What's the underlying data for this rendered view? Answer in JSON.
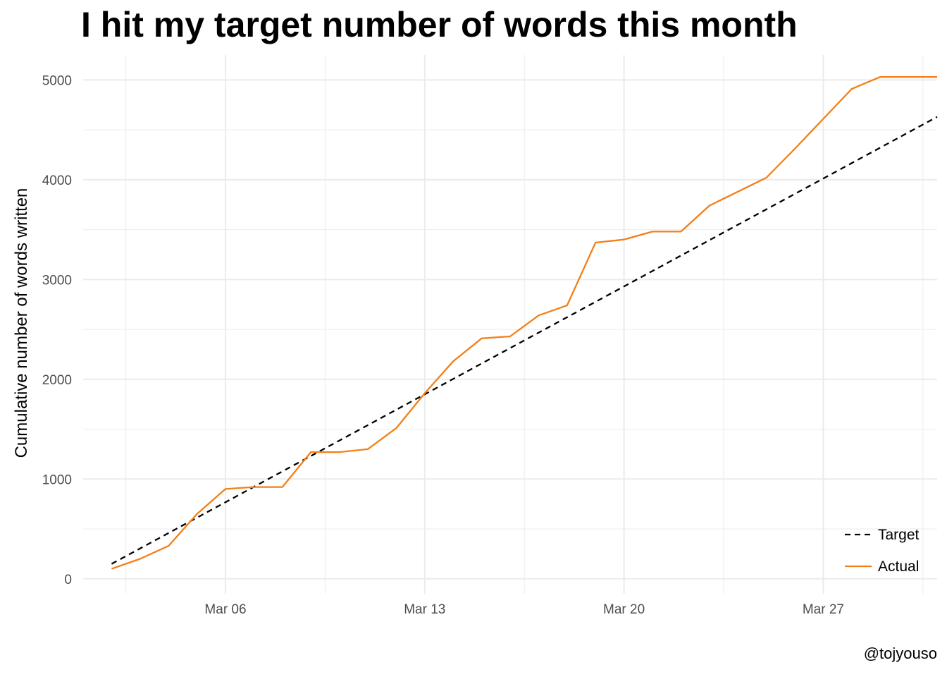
{
  "chart_data": {
    "type": "line",
    "title": "I hit my target number of words this month",
    "xlabel": "",
    "ylabel": "Cumulative number of words written",
    "caption": "@tojyouso",
    "x_type": "date",
    "x_ticks": [
      {
        "date": "2023-03-06",
        "label": "Mar 06"
      },
      {
        "date": "2023-03-13",
        "label": "Mar 13"
      },
      {
        "date": "2023-03-20",
        "label": "Mar 20"
      },
      {
        "date": "2023-03-27",
        "label": "Mar 27"
      }
    ],
    "xlim": [
      "2023-03-01",
      "2023-03-31"
    ],
    "y_ticks": [
      0,
      1000,
      2000,
      3000,
      4000,
      5000
    ],
    "ylim": [
      -150,
      5250
    ],
    "grid": true,
    "legend_position": "bottom-right",
    "colors": {
      "Target": "#000000",
      "Actual": "#f47f17",
      "grid": "#ebebeb"
    },
    "series": [
      {
        "name": "Target",
        "style": "dashed",
        "x": [
          "2023-03-02",
          "2023-03-31"
        ],
        "y": [
          150,
          4630
        ]
      },
      {
        "name": "Actual",
        "style": "solid",
        "x": [
          "2023-03-02",
          "2023-03-03",
          "2023-03-04",
          "2023-03-05",
          "2023-03-06",
          "2023-03-07",
          "2023-03-08",
          "2023-03-09",
          "2023-03-10",
          "2023-03-11",
          "2023-03-12",
          "2023-03-13",
          "2023-03-14",
          "2023-03-15",
          "2023-03-16",
          "2023-03-17",
          "2023-03-18",
          "2023-03-19",
          "2023-03-20",
          "2023-03-21",
          "2023-03-22",
          "2023-03-23",
          "2023-03-24",
          "2023-03-25",
          "2023-03-26",
          "2023-03-27",
          "2023-03-28",
          "2023-03-29",
          "2023-03-30",
          "2023-03-31"
        ],
        "y": [
          100,
          200,
          330,
          650,
          900,
          920,
          920,
          1270,
          1270,
          1300,
          1510,
          1860,
          2180,
          2410,
          2430,
          2640,
          2740,
          3370,
          3400,
          3480,
          3480,
          3740,
          3880,
          4020,
          4310,
          4610,
          4910,
          5030,
          5030,
          5030
        ]
      }
    ]
  }
}
